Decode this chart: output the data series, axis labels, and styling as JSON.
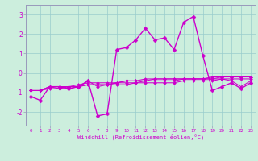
{
  "xlabel": "Windchill (Refroidissement éolien,°C)",
  "bg_color": "#cceedd",
  "line_color": "#cc00cc",
  "grid_color": "#99cccc",
  "spine_color": "#9999bb",
  "xlim": [
    -0.5,
    23.5
  ],
  "ylim": [
    -2.7,
    3.5
  ],
  "yticks": [
    -2,
    -1,
    0,
    1,
    2,
    3
  ],
  "xticks": [
    0,
    1,
    2,
    3,
    4,
    5,
    6,
    7,
    8,
    9,
    10,
    11,
    12,
    13,
    14,
    15,
    16,
    17,
    18,
    19,
    20,
    21,
    22,
    23
  ],
  "series": [
    [
      -1.2,
      -1.4,
      -0.7,
      -0.7,
      -0.8,
      -0.7,
      -0.4,
      -2.2,
      -2.1,
      1.2,
      1.3,
      1.7,
      2.3,
      1.7,
      1.8,
      1.2,
      2.6,
      2.9,
      0.9,
      -0.9,
      -0.7,
      -0.5,
      -0.8,
      -0.5
    ],
    [
      -0.9,
      -0.9,
      -0.7,
      -0.7,
      -0.7,
      -0.7,
      -0.6,
      -0.6,
      -0.6,
      -0.6,
      -0.6,
      -0.5,
      -0.5,
      -0.5,
      -0.5,
      -0.5,
      -0.4,
      -0.4,
      -0.4,
      -0.4,
      -0.3,
      -0.3,
      -0.3,
      -0.3
    ],
    [
      -0.9,
      -0.9,
      -0.8,
      -0.8,
      -0.7,
      -0.7,
      -0.6,
      -0.6,
      -0.6,
      -0.5,
      -0.5,
      -0.5,
      -0.4,
      -0.4,
      -0.4,
      -0.4,
      -0.3,
      -0.3,
      -0.3,
      -0.3,
      -0.2,
      -0.2,
      -0.2,
      -0.2
    ],
    [
      -0.9,
      -0.9,
      -0.7,
      -0.7,
      -0.7,
      -0.6,
      -0.5,
      -0.5,
      -0.5,
      -0.5,
      -0.4,
      -0.4,
      -0.4,
      -0.3,
      -0.3,
      -0.3,
      -0.3,
      -0.3,
      -0.3,
      -0.2,
      -0.2,
      -0.2,
      -0.2,
      -0.2
    ],
    [
      -0.9,
      -0.9,
      -0.7,
      -0.8,
      -0.8,
      -0.7,
      -0.4,
      -0.7,
      -0.6,
      -0.5,
      -0.4,
      -0.4,
      -0.3,
      -0.3,
      -0.3,
      -0.3,
      -0.3,
      -0.3,
      -0.3,
      -0.3,
      -0.3,
      -0.4,
      -0.7,
      -0.4
    ]
  ]
}
